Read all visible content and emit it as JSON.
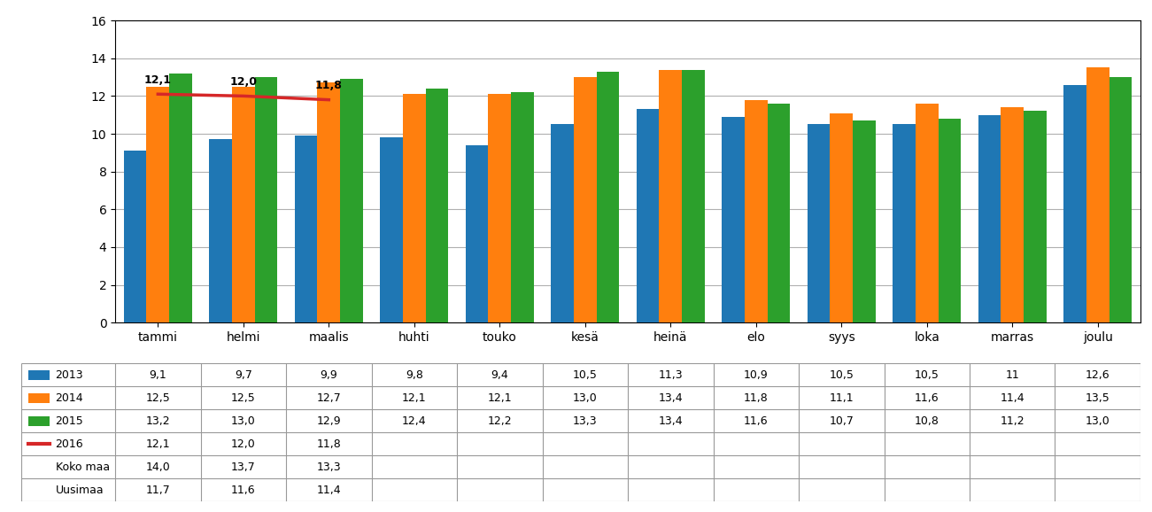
{
  "chart_data": {
    "type": "bar",
    "categories": [
      "tammi",
      "helmi",
      "maalis",
      "huhti",
      "touko",
      "kesä",
      "heinä",
      "elo",
      "syys",
      "loka",
      "marras",
      "joulu"
    ],
    "series": [
      {
        "name": "2013",
        "type": "bar",
        "values": [
          9.1,
          9.7,
          9.9,
          9.8,
          9.4,
          10.5,
          11.3,
          10.9,
          10.5,
          10.5,
          11.0,
          12.6
        ],
        "value_labels": [
          "9,1",
          "9,7",
          "9,9",
          "9,8",
          "9,4",
          "10,5",
          "11,3",
          "10,9",
          "10,5",
          "10,5",
          "11",
          "12,6"
        ]
      },
      {
        "name": "2014",
        "type": "bar",
        "values": [
          12.5,
          12.5,
          12.7,
          12.1,
          12.1,
          13.0,
          13.4,
          11.8,
          11.1,
          11.6,
          11.4,
          13.5
        ],
        "value_labels": [
          "12,5",
          "12,5",
          "12,7",
          "12,1",
          "12,1",
          "13,0",
          "13,4",
          "11,8",
          "11,1",
          "11,6",
          "11,4",
          "13,5"
        ]
      },
      {
        "name": "2015",
        "type": "bar",
        "values": [
          13.2,
          13.0,
          12.9,
          12.4,
          12.2,
          13.3,
          13.4,
          11.6,
          10.7,
          10.8,
          11.2,
          13.0
        ],
        "value_labels": [
          "13,2",
          "13,0",
          "12,9",
          "12,4",
          "12,2",
          "13,3",
          "13,4",
          "11,6",
          "10,7",
          "10,8",
          "11,2",
          "13,0"
        ]
      },
      {
        "name": "2016",
        "type": "line",
        "data_labels": true,
        "values": [
          12.1,
          12.0,
          11.8,
          null,
          null,
          null,
          null,
          null,
          null,
          null,
          null,
          null
        ],
        "value_labels": [
          "12,1",
          "12,0",
          "11,8",
          null,
          null,
          null,
          null,
          null,
          null,
          null,
          null,
          null
        ]
      }
    ],
    "table": [
      {
        "name": "Koko maa",
        "labels": [
          "14,0",
          "13,7",
          "13,3",
          null,
          null,
          null,
          null,
          null,
          null,
          null,
          null,
          null
        ]
      },
      {
        "name": "Uusimaa",
        "labels": [
          "11,7",
          "11,6",
          "11,4",
          null,
          null,
          null,
          null,
          null,
          null,
          null,
          null,
          null
        ]
      }
    ],
    "ylim": [
      0,
      16
    ],
    "yticks": [
      0,
      2,
      4,
      6,
      8,
      10,
      12,
      14,
      16
    ],
    "grid": true
  }
}
